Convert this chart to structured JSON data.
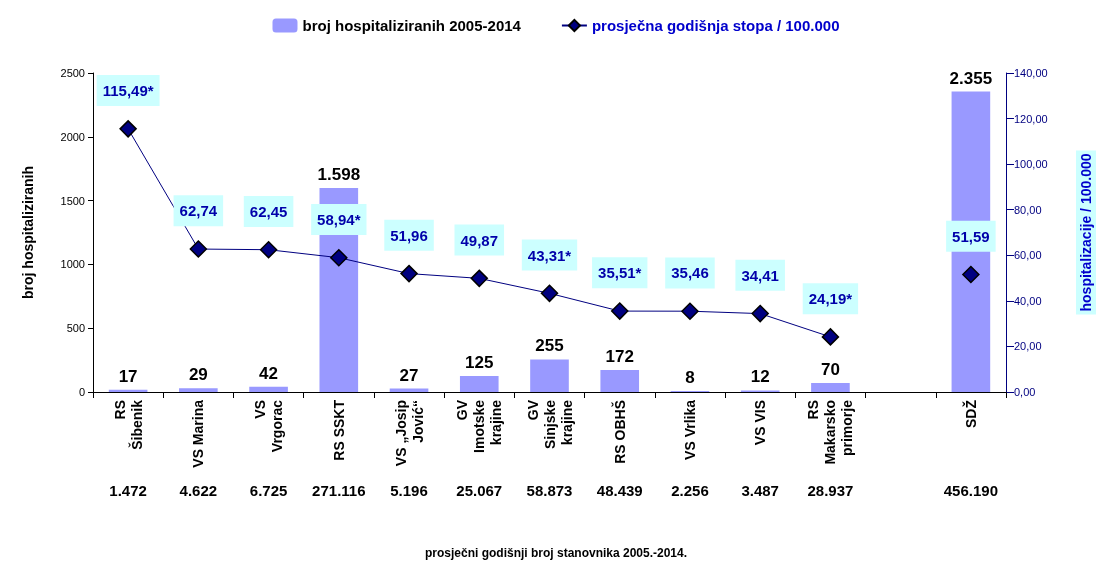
{
  "chart_data": {
    "type": "bar",
    "ylabel": "broj hospitaliziranih",
    "y2label": "hospitalizacije / 100.000",
    "categories": [
      "RS\nŠibenik",
      "VS Marina",
      "VS\nVrgorac",
      "RS SSKT",
      "VS „Josip\nJović“",
      "GV\nImotske\nkrajine",
      "GV\nSinjske\nkrajine",
      "RS OBHŠ",
      "VS Vrlika",
      "VS VIS",
      "RS\nMakarsko\nprimorje",
      null,
      "SDŽ"
    ],
    "series": [
      {
        "name": "broj hospitaliziranih 2005-2014",
        "color": "#9999ff",
        "values": [
          17,
          29,
          42,
          1598,
          27,
          125,
          255,
          172,
          8,
          12,
          70,
          null,
          2355
        ],
        "value_labels": [
          "17",
          "29",
          "42",
          "1.598",
          "27",
          "125",
          "255",
          "172",
          "8",
          "12",
          "70",
          null,
          "2.355"
        ]
      },
      {
        "name": "prosječna godišnja stopa / 100.000",
        "type": "line",
        "axis": "y2",
        "color": "#000080",
        "marker": "diamond",
        "values": [
          115.49,
          62.74,
          62.45,
          58.94,
          51.96,
          49.87,
          43.31,
          35.51,
          35.46,
          34.41,
          24.19,
          null,
          51.59
        ],
        "value_labels": [
          "115,49*",
          "62,74",
          "62,45",
          "58,94*",
          "51,96",
          "49,87",
          "43,31*",
          "35,51*",
          "35,46",
          "34,41",
          "24,19*",
          null,
          "51,59"
        ]
      }
    ],
    "ylim": [
      0,
      2500
    ],
    "yticks": [
      0,
      500,
      1000,
      1500,
      2000,
      2500
    ],
    "y2lim": [
      0,
      140
    ],
    "y2ticks": [
      {
        "value": 0,
        "label": "0,00"
      },
      {
        "value": 20,
        "label": "20,00"
      },
      {
        "value": 40,
        "label": "40,00"
      },
      {
        "value": 60,
        "label": "60,00"
      },
      {
        "value": 80,
        "label": "80,00"
      },
      {
        "value": 100,
        "label": "100,00"
      },
      {
        "value": 120,
        "label": "120,00"
      },
      {
        "value": 140,
        "label": "140,00"
      }
    ],
    "annotations": [
      "1.472",
      "4.622",
      "6.725",
      "271.116",
      "5.196",
      "25.067",
      "58.873",
      "48.439",
      "2.256",
      "3.487",
      "28.937",
      "456.190",
      "prosječni godišnji broj stanovnika 2005.-2014."
    ],
    "grid": false,
    "legend": "top"
  }
}
